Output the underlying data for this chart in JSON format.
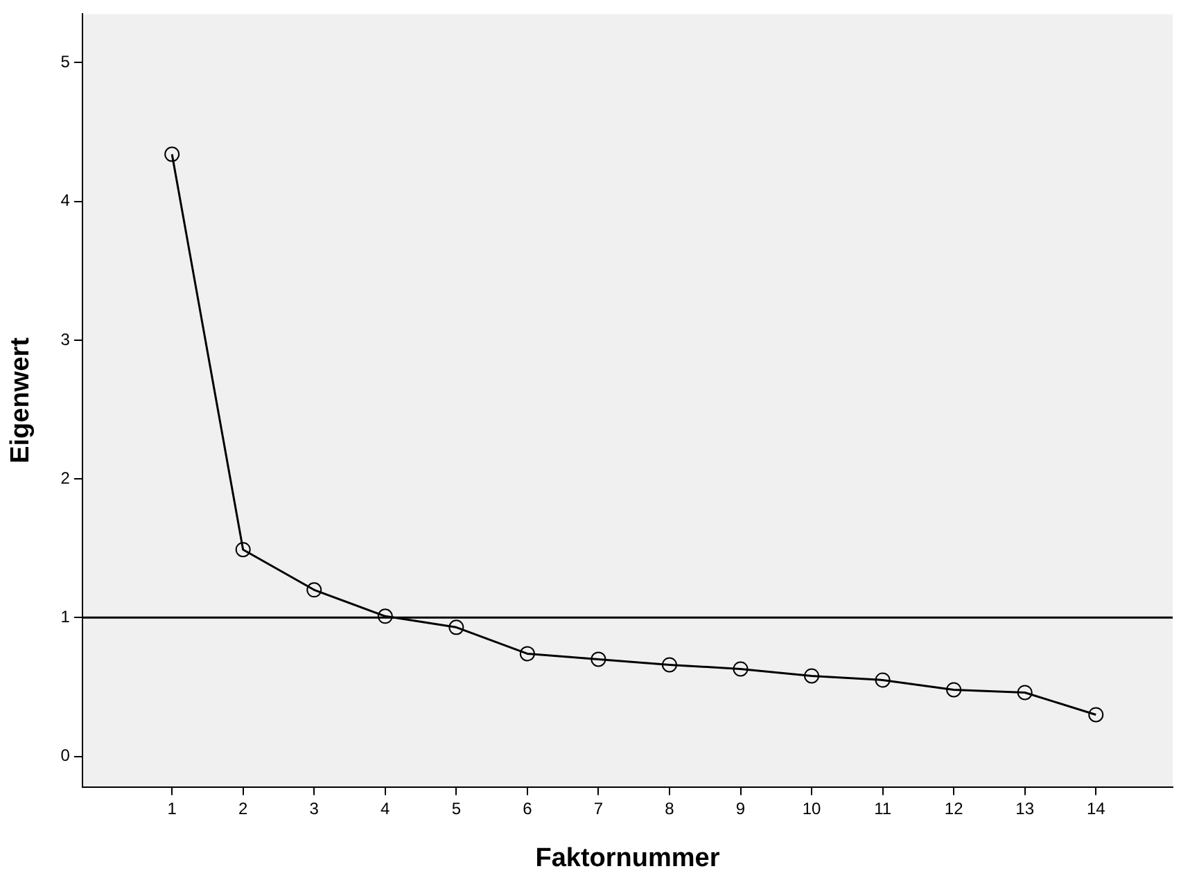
{
  "chart_data": {
    "type": "line",
    "xlabel": "Faktornummer",
    "ylabel": "Eigenwert",
    "x": [
      1,
      2,
      3,
      4,
      5,
      6,
      7,
      8,
      9,
      10,
      11,
      12,
      13,
      14
    ],
    "series": [
      {
        "color": "#000000",
        "values": [
          4.34,
          1.49,
          1.2,
          1.01,
          0.93,
          0.74,
          0.7,
          0.66,
          0.63,
          0.58,
          0.55,
          0.48,
          0.46,
          0.3
        ]
      }
    ],
    "xlim": [
      -0.26,
      15.08
    ],
    "xticks": [
      1,
      2,
      3,
      4,
      5,
      6,
      7,
      8,
      9,
      10,
      11,
      12,
      13,
      14
    ],
    "ylim": [
      -0.22,
      5.35
    ],
    "yticks": [
      0,
      1,
      2,
      3,
      4,
      5
    ],
    "ref_lines": [
      {
        "axis": "y",
        "value": 1,
        "color": "#000000"
      }
    ],
    "grid": false,
    "legend": false,
    "marker": "circle",
    "line_style": "solid"
  }
}
